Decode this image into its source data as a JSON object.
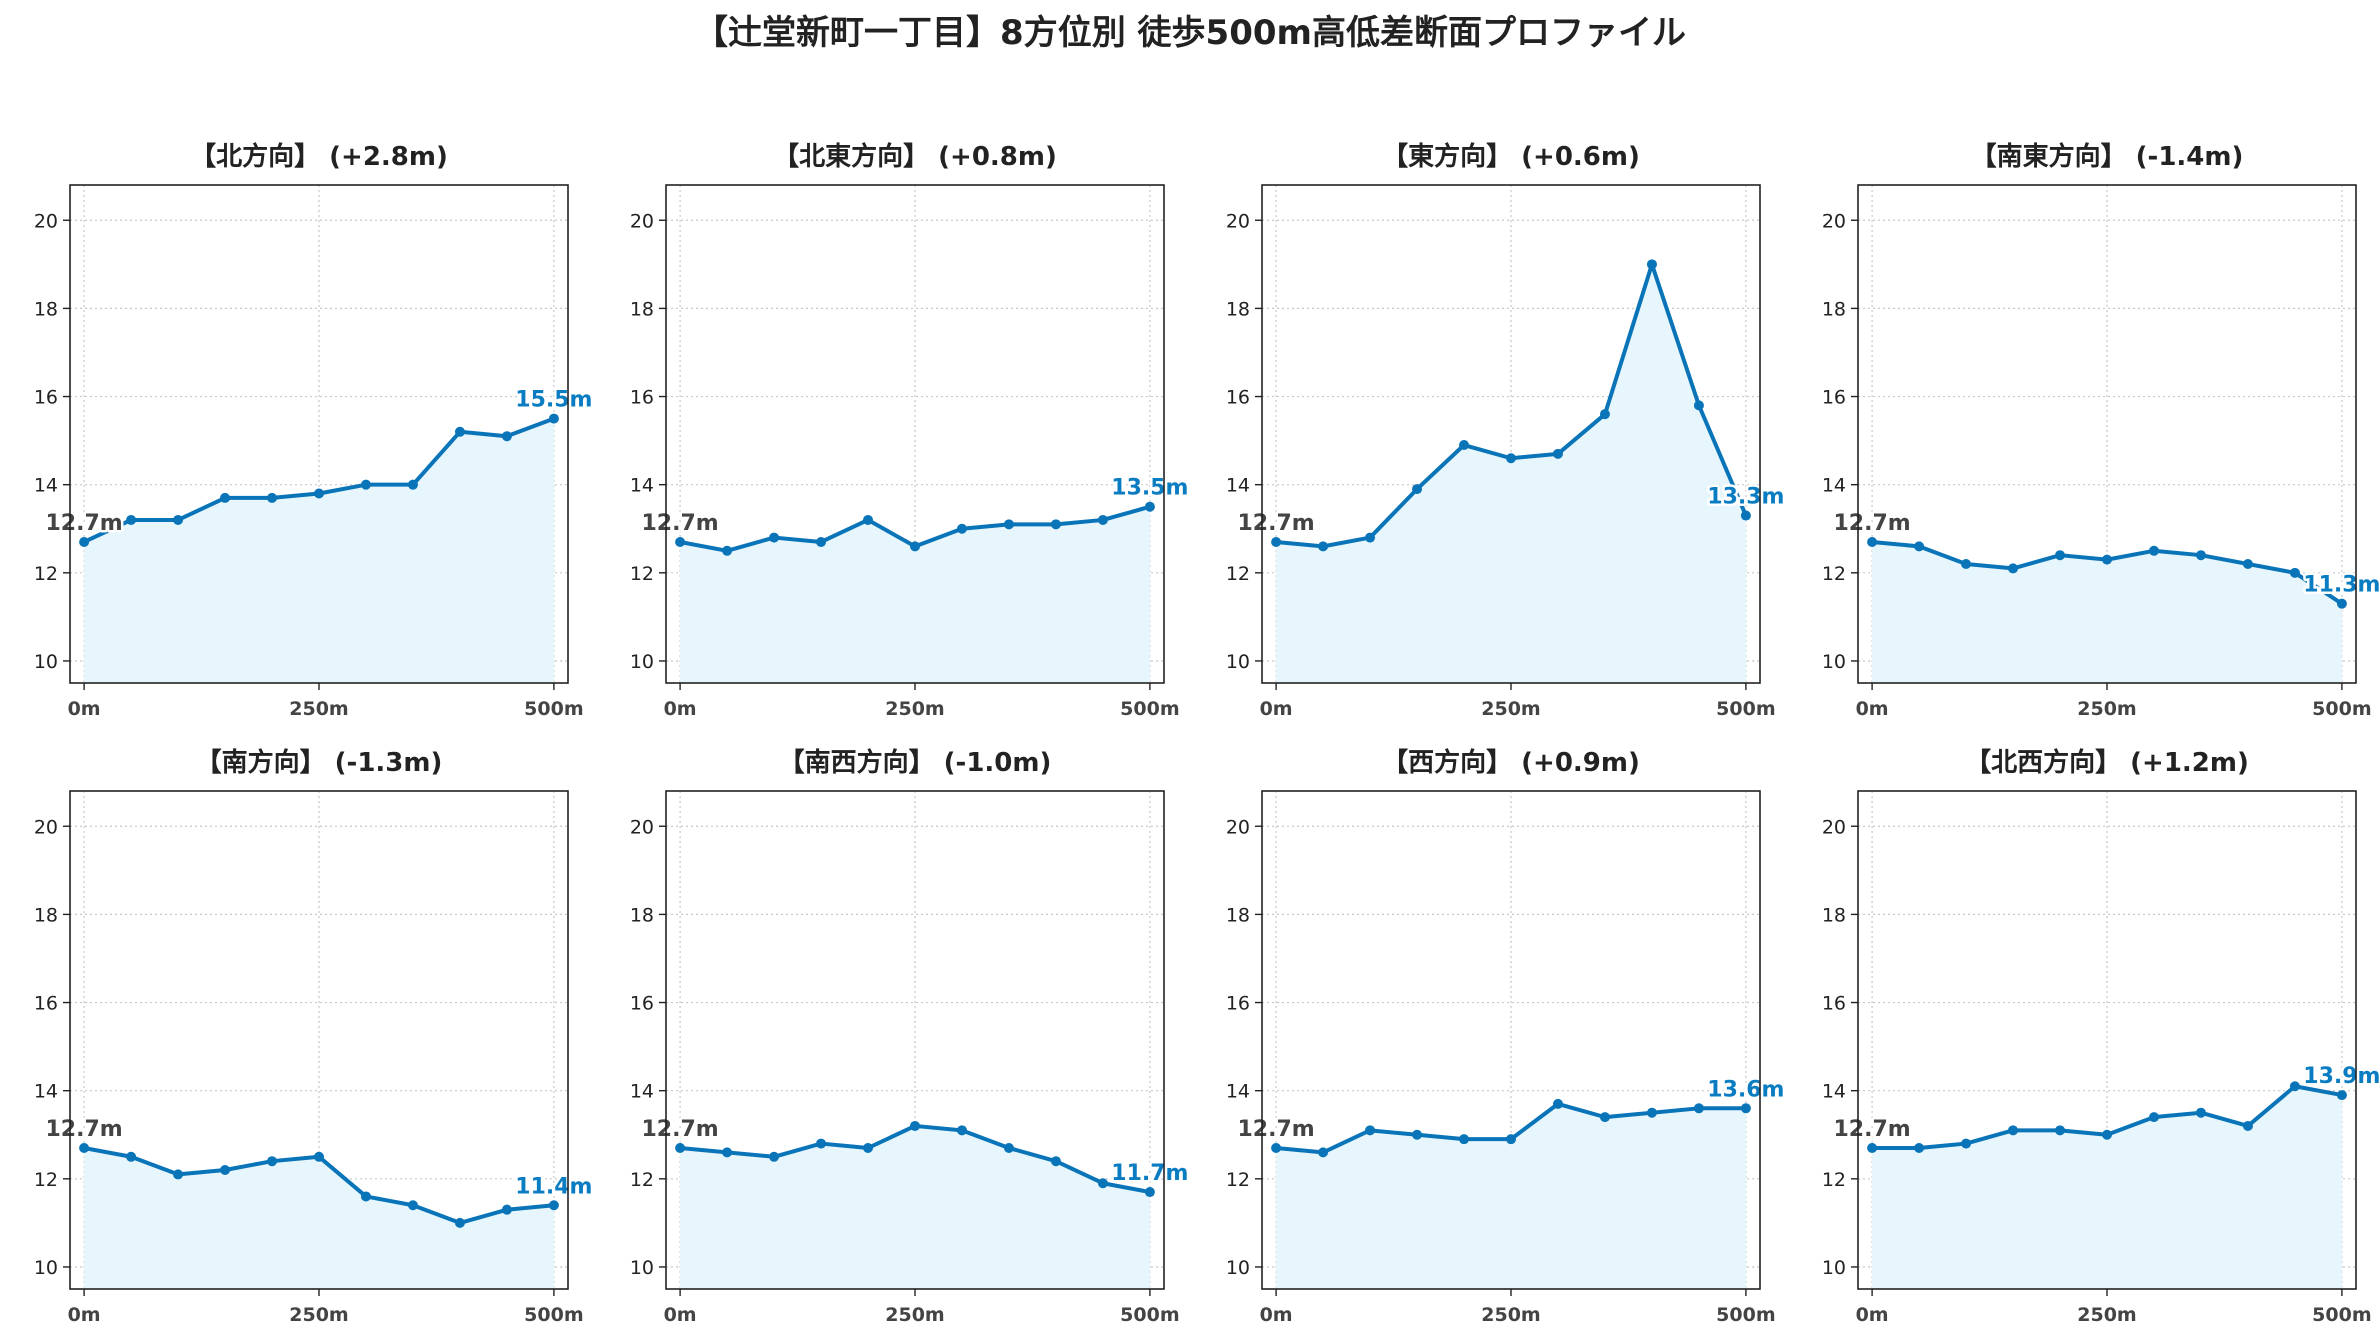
{
  "title": "【辻堂新町一丁目】8方位別 徒歩500m高低差断面プロファイル",
  "colors": {
    "line": "#0a74b8",
    "fill": "#e6f6fc",
    "end_label": "#0a7cc1",
    "start_label": "#444444",
    "grid": "#c8c8c8"
  },
  "chart_data": [
    {
      "type": "area",
      "title": "【北方向】 (+2.8m)",
      "x": [
        0,
        50,
        100,
        150,
        200,
        250,
        300,
        350,
        400,
        450,
        500
      ],
      "y": [
        12.7,
        13.2,
        13.2,
        13.7,
        13.7,
        13.8,
        14.0,
        14.0,
        15.2,
        15.1,
        15.5
      ],
      "start_label": "12.7m",
      "end_label": "15.5m"
    },
    {
      "type": "area",
      "title": "【北東方向】 (+0.8m)",
      "x": [
        0,
        50,
        100,
        150,
        200,
        250,
        300,
        350,
        400,
        450,
        500
      ],
      "y": [
        12.7,
        12.5,
        12.8,
        12.7,
        13.2,
        12.6,
        13.0,
        13.1,
        13.1,
        13.2,
        13.5
      ],
      "start_label": "12.7m",
      "end_label": "13.5m"
    },
    {
      "type": "area",
      "title": "【東方向】 (+0.6m)",
      "x": [
        0,
        50,
        100,
        150,
        200,
        250,
        300,
        350,
        400,
        450,
        500
      ],
      "y": [
        12.7,
        12.6,
        12.8,
        13.9,
        14.9,
        14.6,
        14.7,
        15.6,
        19.0,
        15.8,
        13.3
      ],
      "start_label": "12.7m",
      "end_label": "13.3m"
    },
    {
      "type": "area",
      "title": "【南東方向】 (-1.4m)",
      "x": [
        0,
        50,
        100,
        150,
        200,
        250,
        300,
        350,
        400,
        450,
        500
      ],
      "y": [
        12.7,
        12.6,
        12.2,
        12.1,
        12.4,
        12.3,
        12.5,
        12.4,
        12.2,
        12.0,
        11.3
      ],
      "start_label": "12.7m",
      "end_label": "11.3m"
    },
    {
      "type": "area",
      "title": "【南方向】 (-1.3m)",
      "x": [
        0,
        50,
        100,
        150,
        200,
        250,
        300,
        350,
        400,
        450,
        500
      ],
      "y": [
        12.7,
        12.5,
        12.1,
        12.2,
        12.4,
        12.5,
        11.6,
        11.4,
        11.0,
        11.3,
        11.4
      ],
      "start_label": "12.7m",
      "end_label": "11.4m"
    },
    {
      "type": "area",
      "title": "【南西方向】 (-1.0m)",
      "x": [
        0,
        50,
        100,
        150,
        200,
        250,
        300,
        350,
        400,
        450,
        500
      ],
      "y": [
        12.7,
        12.6,
        12.5,
        12.8,
        12.7,
        13.2,
        13.1,
        12.7,
        12.4,
        11.9,
        11.7
      ],
      "start_label": "12.7m",
      "end_label": "11.7m"
    },
    {
      "type": "area",
      "title": "【西方向】 (+0.9m)",
      "x": [
        0,
        50,
        100,
        150,
        200,
        250,
        300,
        350,
        400,
        450,
        500
      ],
      "y": [
        12.7,
        12.6,
        13.1,
        13.0,
        12.9,
        12.9,
        13.7,
        13.4,
        13.5,
        13.6,
        13.6
      ],
      "start_label": "12.7m",
      "end_label": "13.6m"
    },
    {
      "type": "area",
      "title": "【北西方向】 (+1.2m)",
      "x": [
        0,
        50,
        100,
        150,
        200,
        250,
        300,
        350,
        400,
        450,
        500
      ],
      "y": [
        12.7,
        12.7,
        12.8,
        13.1,
        13.1,
        13.0,
        13.4,
        13.5,
        13.2,
        14.1,
        13.9
      ],
      "start_label": "12.7m",
      "end_label": "13.9m"
    }
  ],
  "axes": {
    "xlim": [
      -15,
      515
    ],
    "ylim": [
      9.5,
      20.8
    ],
    "xticks": [
      0,
      250,
      500
    ],
    "xtick_labels": [
      "0m",
      "250m",
      "500m"
    ],
    "yticks": [
      10,
      12,
      14,
      16,
      18,
      20
    ],
    "ytick_labels": [
      "10",
      "12",
      "14",
      "16",
      "18",
      "20"
    ],
    "grid": true
  }
}
